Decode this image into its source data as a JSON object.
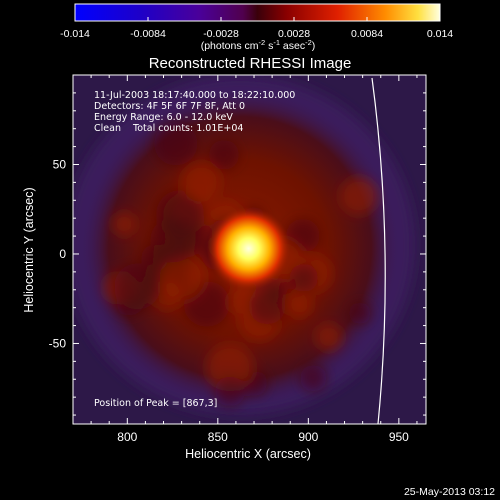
{
  "chart_data": {
    "type": "heatmap",
    "title": "Reconstructed RHESSI Image",
    "xlabel": "Heliocentric X (arcsec)",
    "ylabel": "Heliocentric Y (arcsec)",
    "xlim": [
      770,
      965
    ],
    "ylim": [
      -95,
      100
    ],
    "x_ticks": [
      800,
      850,
      900,
      950
    ],
    "y_ticks": [
      -50,
      0,
      50
    ],
    "colorbar": {
      "min": -0.014,
      "max": 0.014,
      "ticks": [
        "-0.014",
        "-0.0084",
        "-0.0028",
        "0.0028",
        "0.0084",
        "0.014"
      ],
      "tick_values": [
        -0.014,
        -0.0084,
        -0.0028,
        0.0028,
        0.0084,
        0.014
      ],
      "unit_label": "(photons cm",
      "unit_sup1": "-2",
      "unit_mid": " s",
      "unit_sup2": "-1",
      "unit_mid2": " asec",
      "unit_sup3": "-2",
      "unit_end": ")"
    },
    "source": {
      "x": 867,
      "y": 3,
      "peak_value": 0.014
    },
    "annotations": [
      "11-Jul-2003 18:17:40.000 to 18:22:10.000",
      "Detectors: 4F 5F 6F 7F 8F, Att 0",
      "Energy Range: 6.0 - 12.0 keV",
      "Clean    Total counts: 1.01E+04"
    ],
    "peak_label": "Position of Peak = [867,3]",
    "grid": false,
    "limb": "solar limb arc near X=940",
    "colors": {
      "background": "#000000",
      "halo": "#7a1400",
      "core": "#ffff66",
      "outer": "#3a1b5c"
    }
  },
  "timestamp": "25-May-2013 03:12"
}
